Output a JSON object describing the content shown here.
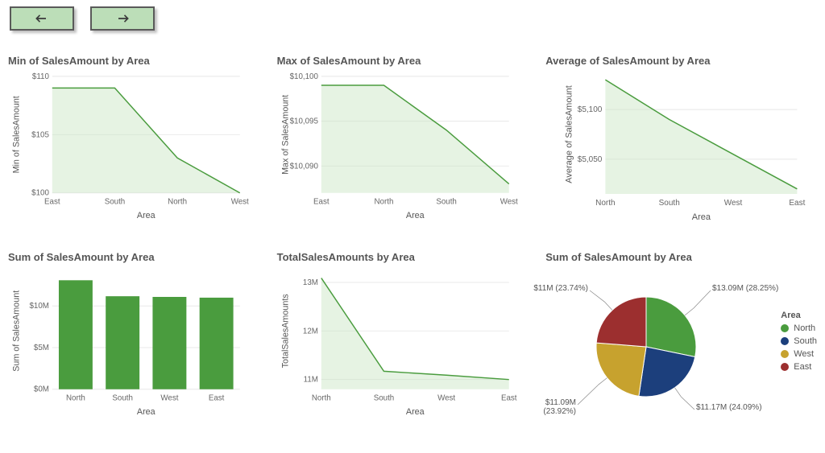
{
  "nav": {
    "back": "←",
    "forward": "→"
  },
  "charts": {
    "min_chart": {
      "type": "area",
      "title": "Min of SalesAmount by Area",
      "ylabel": "Min of SalesAmount",
      "xlabel": "Area",
      "categories": [
        "East",
        "South",
        "North",
        "West"
      ],
      "values": [
        109,
        109,
        103,
        100
      ],
      "ylim": [
        100,
        110
      ],
      "yticks": [
        100,
        105,
        110
      ],
      "ytick_labels": [
        "$100",
        "$105",
        "$110"
      ],
      "fill_color": "#c7e5c1",
      "line_color": "#4a9c3e",
      "background": "#ffffff"
    },
    "max_chart": {
      "type": "area",
      "title": "Max of SalesAmount by Area",
      "ylabel": "Max of SalesAmount",
      "xlabel": "Area",
      "categories": [
        "East",
        "North",
        "South",
        "West"
      ],
      "values": [
        10099,
        10099,
        10094,
        10088
      ],
      "ylim": [
        10087,
        10100
      ],
      "yticks": [
        10090,
        10095,
        10100
      ],
      "ytick_labels": [
        "$10,090",
        "$10,095",
        "$10,100"
      ],
      "fill_color": "#c7e5c1",
      "line_color": "#4a9c3e",
      "background": "#ffffff"
    },
    "avg_chart": {
      "type": "area",
      "title": "Average of SalesAmount by Area",
      "ylabel": "Average of SalesAmount",
      "xlabel": "Area",
      "categories": [
        "North",
        "South",
        "West",
        "East"
      ],
      "values": [
        5130,
        5090,
        5055,
        5020
      ],
      "ylim": [
        5015,
        5135
      ],
      "yticks": [
        5050,
        5100
      ],
      "ytick_labels": [
        "$5,050",
        "$5,100"
      ],
      "fill_color": "#c7e5c1",
      "line_color": "#4a9c3e",
      "background": "#ffffff"
    },
    "sum_bar": {
      "type": "bar",
      "title": "Sum of SalesAmount by Area",
      "ylabel": "Sum of SalesAmount",
      "xlabel": "Area",
      "categories": [
        "North",
        "South",
        "West",
        "East"
      ],
      "values": [
        13090000,
        11170000,
        11090000,
        11000000
      ],
      "ylim": [
        0,
        14000000
      ],
      "yticks": [
        0,
        5000000,
        10000000
      ],
      "ytick_labels": [
        "$0M",
        "$5M",
        "$10M"
      ],
      "bar_color": "#4a9c3e",
      "background": "#ffffff",
      "bar_width": 0.72
    },
    "total_line": {
      "type": "line",
      "title": "TotalSalesAmounts by Area",
      "ylabel": "TotalSalesAmounts",
      "xlabel": "Area",
      "categories": [
        "North",
        "South",
        "West",
        "East"
      ],
      "values": [
        13090000,
        11170000,
        11090000,
        11000000
      ],
      "ylim": [
        10800000,
        13200000
      ],
      "yticks": [
        11000000,
        12000000,
        13000000
      ],
      "ytick_labels": [
        "11M",
        "12M",
        "13M"
      ],
      "fill_color": "#c7e5c1",
      "line_color": "#4a9c3e",
      "background": "#ffffff"
    },
    "pie_chart": {
      "type": "pie",
      "title": "Sum of SalesAmount by Area",
      "legend_title": "Area",
      "slices": [
        {
          "label": "North",
          "value": 13090000,
          "pct": "28.25%",
          "display": "$13.09M (28.25%)",
          "color": "#4a9c3e"
        },
        {
          "label": "South",
          "value": 11170000,
          "pct": "24.09%",
          "display": "$11.17M (24.09%)",
          "color": "#1c3f7c"
        },
        {
          "label": "West",
          "value": 11090000,
          "pct": "23.92%",
          "display": "$11.09M\n(23.92%)",
          "color": "#c7a22e"
        },
        {
          "label": "East",
          "value": 11000000,
          "pct": "23.74%",
          "display": "$11M (23.74%)",
          "color": "#9c2f2f"
        }
      ]
    }
  },
  "style": {
    "title_fontsize": 13,
    "axis_fontsize": 10,
    "grid_color": "#e8e8e8",
    "text_color": "#555555"
  }
}
